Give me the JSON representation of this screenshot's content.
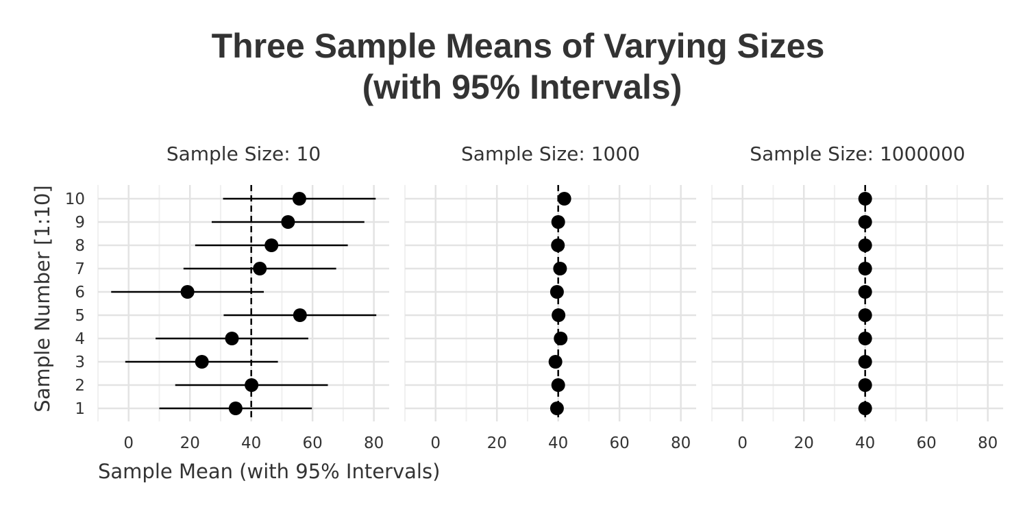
{
  "chart_data": {
    "type": "scatter",
    "title_lines": [
      "Three Sample Means of Varying Sizes",
      "(with 95% Intervals)"
    ],
    "xlabel": "Sample Mean (with 95% Intervals)",
    "ylabel": "Sample Number [1:10]",
    "xlim": [
      -10,
      85
    ],
    "x_ticks": [
      0,
      20,
      40,
      60,
      80
    ],
    "y_ticks": [
      1,
      2,
      3,
      4,
      5,
      6,
      7,
      8,
      9,
      10
    ],
    "reference_line": 40,
    "grid": true,
    "panels": [
      {
        "label": "Sample Size: 10",
        "points": [
          {
            "sample": 1,
            "mean": 34.9,
            "lower": 10.0,
            "upper": 59.8
          },
          {
            "sample": 2,
            "mean": 40.1,
            "lower": 15.2,
            "upper": 65.0
          },
          {
            "sample": 3,
            "mean": 23.9,
            "lower": -1.1,
            "upper": 48.7
          },
          {
            "sample": 4,
            "mean": 33.7,
            "lower": 8.8,
            "upper": 58.6
          },
          {
            "sample": 5,
            "mean": 55.9,
            "lower": 31.0,
            "upper": 80.8
          },
          {
            "sample": 6,
            "mean": 19.2,
            "lower": -5.7,
            "upper": 44.1
          },
          {
            "sample": 7,
            "mean": 42.8,
            "lower": 17.9,
            "upper": 67.7
          },
          {
            "sample": 8,
            "mean": 46.6,
            "lower": 21.7,
            "upper": 71.5
          },
          {
            "sample": 9,
            "mean": 52.0,
            "lower": 27.1,
            "upper": 76.9
          },
          {
            "sample": 10,
            "mean": 55.7,
            "lower": 30.8,
            "upper": 80.6
          }
        ]
      },
      {
        "label": "Sample Size: 1000",
        "points": [
          {
            "sample": 1,
            "mean": 39.6,
            "lower": 38.8,
            "upper": 40.4
          },
          {
            "sample": 2,
            "mean": 40.0,
            "lower": 39.2,
            "upper": 40.8
          },
          {
            "sample": 3,
            "mean": 39.1,
            "lower": 38.3,
            "upper": 39.9
          },
          {
            "sample": 4,
            "mean": 40.8,
            "lower": 40.0,
            "upper": 41.6
          },
          {
            "sample": 5,
            "mean": 40.1,
            "lower": 39.3,
            "upper": 40.9
          },
          {
            "sample": 6,
            "mean": 39.6,
            "lower": 38.8,
            "upper": 40.4
          },
          {
            "sample": 7,
            "mean": 40.6,
            "lower": 39.8,
            "upper": 41.4
          },
          {
            "sample": 8,
            "mean": 39.9,
            "lower": 39.1,
            "upper": 40.7
          },
          {
            "sample": 9,
            "mean": 40.0,
            "lower": 39.2,
            "upper": 40.8
          },
          {
            "sample": 10,
            "mean": 42.0,
            "lower": 41.2,
            "upper": 42.8
          }
        ]
      },
      {
        "label": "Sample Size: 1000000",
        "points": [
          {
            "sample": 1,
            "mean": 40.0,
            "lower": 39.98,
            "upper": 40.02
          },
          {
            "sample": 2,
            "mean": 40.0,
            "lower": 39.98,
            "upper": 40.02
          },
          {
            "sample": 3,
            "mean": 40.0,
            "lower": 39.98,
            "upper": 40.02
          },
          {
            "sample": 4,
            "mean": 40.0,
            "lower": 39.98,
            "upper": 40.02
          },
          {
            "sample": 5,
            "mean": 40.0,
            "lower": 39.98,
            "upper": 40.02
          },
          {
            "sample": 6,
            "mean": 40.0,
            "lower": 39.98,
            "upper": 40.02
          },
          {
            "sample": 7,
            "mean": 40.0,
            "lower": 39.98,
            "upper": 40.02
          },
          {
            "sample": 8,
            "mean": 40.0,
            "lower": 39.98,
            "upper": 40.02
          },
          {
            "sample": 9,
            "mean": 40.0,
            "lower": 39.98,
            "upper": 40.02
          },
          {
            "sample": 10,
            "mean": 40.0,
            "lower": 39.98,
            "upper": 40.02
          }
        ]
      }
    ],
    "colors": {
      "point": "#000000",
      "interval": "#000000",
      "reference": "#000000",
      "grid_major": "#e3e3e3",
      "grid_minor": "#f0f0f0",
      "text": "#333333"
    }
  }
}
